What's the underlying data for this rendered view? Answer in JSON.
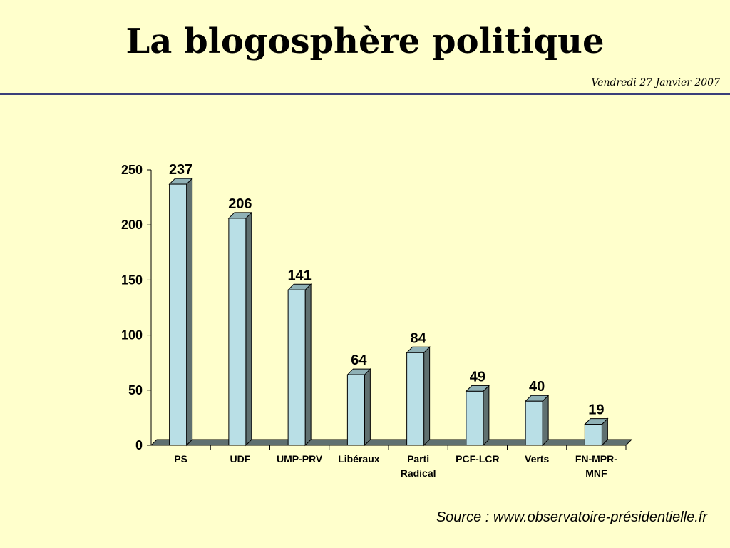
{
  "slide": {
    "title": "La blogosphère politique",
    "date": "Vendredi 27 Janvier 2007",
    "source": "Source : www.observatoire-présidentielle.fr"
  },
  "colors": {
    "background": "#ffffcc",
    "bar_front": "#b9dfe6",
    "bar_side": "#5f7070",
    "bar_top": "#8fb1b6",
    "rule": "#3a3f7a"
  },
  "chart_data": {
    "type": "bar",
    "categories": [
      [
        "PS"
      ],
      [
        "UDF"
      ],
      [
        "UMP-PRV"
      ],
      [
        "Libéraux"
      ],
      [
        "Parti",
        "Radical"
      ],
      [
        "PCF-LCR"
      ],
      [
        "Verts"
      ],
      [
        "FN-MPR-",
        "MNF"
      ]
    ],
    "values": [
      237,
      206,
      141,
      64,
      84,
      49,
      40,
      19
    ],
    "yticks": [
      0,
      50,
      100,
      150,
      200,
      250
    ],
    "ylim": [
      0,
      250
    ],
    "grid": false,
    "legend": "none",
    "style": "3d"
  }
}
